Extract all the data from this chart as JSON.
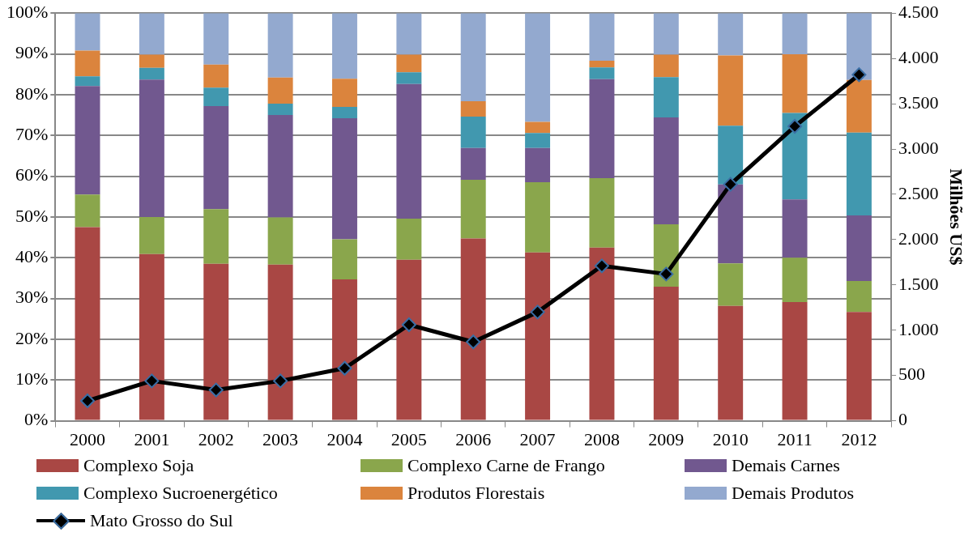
{
  "chart_data": {
    "type": "bar",
    "stacked": true,
    "y2label": "Milhões US$",
    "categories": [
      "2000",
      "2001",
      "2002",
      "2003",
      "2004",
      "2005",
      "2006",
      "2007",
      "2008",
      "2009",
      "2010",
      "2011",
      "2012"
    ],
    "series": [
      {
        "name": "Complexo Soja",
        "color": "#a94744",
        "values": [
          47.5,
          40.9,
          38.5,
          38.3,
          34.7,
          39.5,
          44.7,
          41.3,
          42.5,
          32.9,
          28.2,
          29.1,
          26.7
        ]
      },
      {
        "name": "Complexo Carne de Frango",
        "color": "#8aa64c",
        "values": [
          8.0,
          9.1,
          13.4,
          11.6,
          9.8,
          10.1,
          14.4,
          17.2,
          17.0,
          15.3,
          10.4,
          10.9,
          7.6
        ]
      },
      {
        "name": "Demais Carnes",
        "color": "#71588f",
        "values": [
          26.6,
          33.7,
          25.3,
          25.1,
          29.7,
          33.0,
          7.8,
          8.4,
          24.3,
          26.2,
          19.4,
          14.3,
          16.1
        ]
      },
      {
        "name": "Complexo Sucroenergético",
        "color": "#4198af",
        "values": [
          2.4,
          2.9,
          4.5,
          2.8,
          2.8,
          2.9,
          7.7,
          3.7,
          2.9,
          9.9,
          14.4,
          21.2,
          20.3
        ]
      },
      {
        "name": "Produtos Florestais",
        "color": "#db843d",
        "values": [
          6.3,
          3.2,
          5.7,
          6.4,
          6.9,
          4.3,
          3.8,
          2.7,
          1.6,
          5.5,
          17.2,
          14.4,
          12.9
        ]
      },
      {
        "name": "Demais Produtos",
        "color": "#93a9cf",
        "values": [
          9.2,
          10.2,
          12.6,
          15.8,
          16.1,
          10.2,
          21.6,
          26.7,
          11.7,
          10.2,
          10.4,
          10.1,
          16.5
        ]
      },
      {
        "name": "Mato Grosso do Sul",
        "type": "line",
        "axis": "y2",
        "color": "#000000",
        "values": [
          220,
          440,
          340,
          440,
          580,
          1060,
          870,
          1200,
          1710,
          1620,
          2610,
          3250,
          3820
        ]
      }
    ],
    "ylim": [
      0,
      100
    ],
    "yticks": [
      {
        "value": 0,
        "label": "0%"
      },
      {
        "value": 10,
        "label": "10%"
      },
      {
        "value": 20,
        "label": "20%"
      },
      {
        "value": 30,
        "label": "30%"
      },
      {
        "value": 40,
        "label": "40%"
      },
      {
        "value": 50,
        "label": "50%"
      },
      {
        "value": 60,
        "label": "60%"
      },
      {
        "value": 70,
        "label": "70%"
      },
      {
        "value": 80,
        "label": "80%"
      },
      {
        "value": 90,
        "label": "90%"
      },
      {
        "value": 100,
        "label": "100%"
      }
    ],
    "y2lim": [
      0,
      4500
    ],
    "y2ticks": [
      0,
      500,
      {
        "value": 1000,
        "label": "1.000"
      },
      {
        "value": 1500,
        "label": "1.500"
      },
      {
        "value": 2000,
        "label": "2.000"
      },
      {
        "value": 2500,
        "label": "2.500"
      },
      {
        "value": 3000,
        "label": "3.000"
      },
      {
        "value": 3500,
        "label": "3.500"
      },
      {
        "value": 4000,
        "label": "4.000"
      },
      {
        "value": 4500,
        "label": "4.500"
      }
    ],
    "grid": "y",
    "legend": "bottom",
    "marker": "diamond",
    "line_style": "solid"
  }
}
